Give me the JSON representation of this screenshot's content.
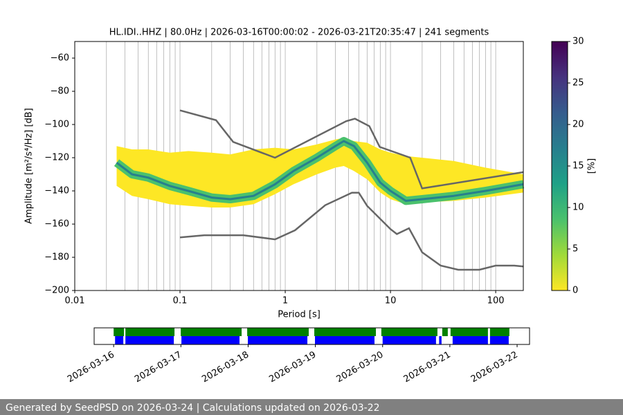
{
  "chart_data": [
    {
      "type": "ppsd",
      "title": "HL.IDI..HHZ | 80.0Hz | 2026-03-16T00:00:02 - 2026-03-21T20:35:47 | 241 segments",
      "xlabel": "Period [s]",
      "ylabel": "Amplitude [m²/s⁴/Hz] [dB]",
      "xscale": "log",
      "xlim": [
        0.01,
        183
      ],
      "xticks": [
        0.01,
        0.1,
        1,
        10,
        100
      ],
      "ylim": [
        -200,
        -50
      ],
      "yticks": [
        {
          "value": -200,
          "label": "−200"
        },
        {
          "value": -180,
          "label": "−180"
        },
        {
          "value": -160,
          "label": "−160"
        },
        {
          "value": -140,
          "label": "−140"
        },
        {
          "value": -120,
          "label": "−120"
        },
        {
          "value": -100,
          "label": "−100"
        },
        {
          "value": -80,
          "label": "−80"
        },
        {
          "value": -60,
          "label": "−60"
        }
      ],
      "grid_x": true,
      "psd": {
        "period": [
          0.025,
          0.035,
          0.05,
          0.08,
          0.12,
          0.2,
          0.3,
          0.5,
          0.8,
          1.2,
          2,
          3,
          3.6,
          4.5,
          6,
          8,
          10,
          14,
          20,
          40,
          80,
          183
        ],
        "mode": [
          -123,
          -130,
          -132,
          -137,
          -140,
          -144,
          -145,
          -143,
          -136,
          -128,
          -120,
          -113,
          -110,
          -113,
          -123,
          -135,
          -140,
          -146,
          -145,
          -143,
          -140,
          -136
        ],
        "lower": [
          -137,
          -143,
          -145,
          -148,
          -149,
          -150,
          -150,
          -148,
          -142,
          -136,
          -130,
          -126,
          -125,
          -128,
          -133,
          -141,
          -145,
          -148,
          -147,
          -146,
          -144,
          -141
        ],
        "upper": [
          -113,
          -115,
          -115,
          -117,
          -116,
          -117,
          -118,
          -115,
          -114,
          -115,
          -112,
          -109,
          -108,
          -110,
          -111,
          -115,
          -117,
          -119,
          -120,
          -122,
          -126,
          -130
        ]
      },
      "nhnm": {
        "period": [
          0.1,
          0.22,
          0.32,
          0.8,
          3.8,
          4.6,
          6.3,
          7.9,
          15.4,
          20,
          183
        ],
        "db": [
          -91.5,
          -97.4,
          -110.5,
          -120,
          -98,
          -96.5,
          -101,
          -113.5,
          -120,
          -138.5,
          -128.7
        ]
      },
      "nlnm": {
        "period": [
          0.1,
          0.17,
          0.4,
          0.8,
          1.24,
          2.4,
          4.3,
          5,
          6,
          10,
          11.5,
          15,
          20,
          30,
          44,
          70,
          100,
          150,
          183
        ],
        "db": [
          -168,
          -166.7,
          -166.7,
          -169.2,
          -163.7,
          -148.6,
          -141.1,
          -141.1,
          -149,
          -163,
          -166,
          -162.5,
          -177,
          -185,
          -187.5,
          -187.5,
          -185,
          -185,
          -185.5
        ]
      },
      "model_color": "#666666",
      "colorbar": {
        "label": "[%]",
        "clim": [
          0,
          30
        ],
        "ticks": [
          0,
          5,
          10,
          15,
          20,
          25,
          30
        ],
        "colormap": [
          "#fde725",
          "#a0da39",
          "#4ac16d",
          "#1fa187",
          "#277f8e",
          "#365c8d",
          "#46327e",
          "#440154"
        ]
      }
    },
    {
      "type": "timeline",
      "xlim": [
        -0.29,
        6.185
      ],
      "xticks": [
        {
          "value": 0,
          "label": "2026-03-16"
        },
        {
          "value": 1,
          "label": "2026-03-17"
        },
        {
          "value": 2,
          "label": "2026-03-18"
        },
        {
          "value": 3,
          "label": "2026-03-19"
        },
        {
          "value": 4,
          "label": "2026-03-20"
        },
        {
          "value": 5,
          "label": "2026-03-21"
        },
        {
          "value": 6,
          "label": "2026-03-22"
        }
      ],
      "series": [
        {
          "color": "#008000",
          "segments": [
            [
              0,
              0.154
            ],
            [
              0.175,
              0.905
            ],
            [
              0.998,
              1.903
            ],
            [
              1.986,
              2.901
            ],
            [
              2.984,
              3.9
            ],
            [
              3.981,
              4.815
            ],
            [
              4.887,
              4.969
            ],
            [
              5.01,
              5.566
            ],
            [
              5.597,
              5.885
            ]
          ]
        },
        {
          "color": "#0000ff",
          "segments": [
            [
              0.021,
              0.144
            ],
            [
              0.175,
              0.895
            ],
            [
              1.008,
              1.872
            ],
            [
              1.996,
              2.881
            ],
            [
              2.994,
              3.879
            ],
            [
              4.0,
              4.794
            ],
            [
              4.84,
              4.876
            ],
            [
              5.041,
              5.566
            ],
            [
              5.597,
              5.875
            ]
          ]
        }
      ]
    }
  ],
  "footer": "Generated by SeedPSD on 2026-03-24 | Calculations updated on 2026-03-22"
}
